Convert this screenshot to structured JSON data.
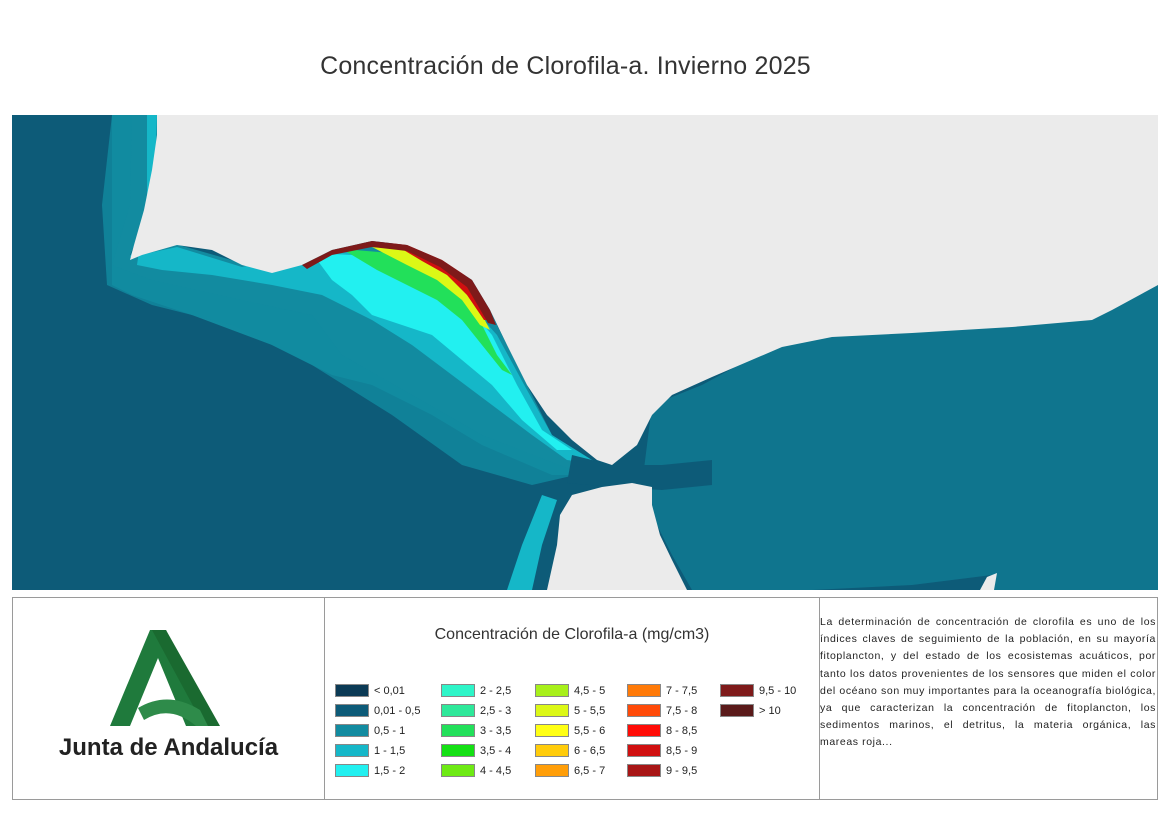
{
  "title": "Concentración de Clorofila-a. Invierno 2025",
  "logo": {
    "name": "Junta de Andalucía",
    "color": "#1f7a3c"
  },
  "legend": {
    "title": "Concentración de Clorofila-a (mg/cm3)",
    "items": [
      {
        "label": "< 0,01",
        "color": "#0b3a55"
      },
      {
        "label": "0,01 - 0,5",
        "color": "#0d5b78"
      },
      {
        "label": "0,5 - 1",
        "color": "#128ba0"
      },
      {
        "label": "1 - 1,5",
        "color": "#15b7c8"
      },
      {
        "label": "1,5 - 2",
        "color": "#22f0f0"
      },
      {
        "label": "2 - 2,5",
        "color": "#2ef5c8"
      },
      {
        "label": "2,5 - 3",
        "color": "#2ee89a"
      },
      {
        "label": "3 - 3,5",
        "color": "#22e05a"
      },
      {
        "label": "3,5 - 4",
        "color": "#14e014"
      },
      {
        "label": "4 - 4,5",
        "color": "#6eea14"
      },
      {
        "label": "4,5 - 5",
        "color": "#a8f01a"
      },
      {
        "label": "5 - 5,5",
        "color": "#dcf816"
      },
      {
        "label": "5,5 - 6",
        "color": "#ffff14"
      },
      {
        "label": "6 - 6,5",
        "color": "#ffcc0a"
      },
      {
        "label": "6,5 - 7",
        "color": "#ff9e08"
      },
      {
        "label": "7 - 7,5",
        "color": "#ff7a08"
      },
      {
        "label": "7,5 - 8",
        "color": "#ff4a08"
      },
      {
        "label": "8 - 8,5",
        "color": "#ff0c06"
      },
      {
        "label": "8,5 - 9",
        "color": "#d01010"
      },
      {
        "label": "9 - 9,5",
        "color": "#a81616"
      },
      {
        "label": "9,5 - 10",
        "color": "#7e1a1a"
      },
      {
        "label": "> 10",
        "color": "#5a1a1a"
      }
    ]
  },
  "description": "La determinación de concentración de clorofila es uno de los índices claves de seguimiento de la población, en su mayoría fitoplancton, y del estado de los ecosistemas acuáticos, por tanto los datos provenientes de los sensores que miden el color del océano son muy importantes para la oceanografía biológica, ya que caracterizan la concentración de fitoplancton, los sedimentos marinos, el detritus, la materia orgánica, las mareas roja...",
  "colors": {
    "land": "#ebebeb",
    "ocean": "#0d5b78",
    "border": "#9a9a9a"
  }
}
